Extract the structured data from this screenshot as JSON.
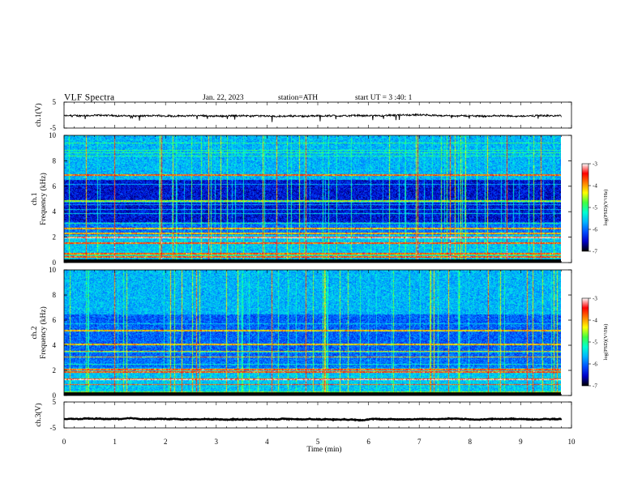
{
  "header": {
    "title": "VLF  Spectra",
    "date": "Jan. 22, 2023",
    "station": "station=ATH",
    "start": "start  UT  =    3  :40: 1"
  },
  "colors": {
    "colormap": [
      "#000000",
      "#0000c8",
      "#0050ff",
      "#00b4ff",
      "#00ffd0",
      "#40ff40",
      "#ffff00",
      "#ff8000",
      "#ff0000",
      "#ffffff"
    ],
    "trace": "#000000",
    "axis": "#000000"
  },
  "chart_data": [
    {
      "type": "line",
      "panel": "ch1-waveform",
      "ylabel": "ch.1(V)",
      "ylim": [
        -5,
        5
      ],
      "yticks": [
        "5",
        "-5"
      ],
      "xlim": [
        0,
        10
      ],
      "series": [
        {
          "values_description_free": true,
          "mean": -0.3,
          "spread": 0.6,
          "x_end": 9.8
        }
      ]
    },
    {
      "type": "heatmap",
      "panel": "ch1-spectrogram",
      "ylabel_channel": "ch.1",
      "ylabel": "Frequency  (kHz)",
      "ylim": [
        0,
        10
      ],
      "yticks": [
        "0",
        "2",
        "4",
        "6",
        "8",
        "10"
      ],
      "xlim": [
        0,
        9.8
      ],
      "colorbar": {
        "label": "log(PSD)(V²/Hz)",
        "range": [
          -7,
          -3
        ],
        "ticks": [
          "-3",
          "-4",
          "-5",
          "-6",
          "-7"
        ]
      }
    },
    {
      "type": "heatmap",
      "panel": "ch2-spectrogram",
      "ylabel_channel": "ch.2",
      "ylabel": "Frequency  (kHz)",
      "ylim": [
        0,
        10
      ],
      "yticks": [
        "0",
        "2",
        "4",
        "6",
        "8",
        "10"
      ],
      "xlim": [
        0,
        9.8
      ],
      "colorbar": {
        "label": "log(PSD)(V²/Hz)",
        "range": [
          -7,
          -3
        ],
        "ticks": [
          "-3",
          "-4",
          "-5",
          "-6",
          "-7"
        ]
      }
    },
    {
      "type": "line",
      "panel": "ch3-waveform",
      "ylabel": "ch.3(V)",
      "ylim": [
        -5,
        5
      ],
      "yticks": [
        "5",
        "-5"
      ],
      "xlim": [
        0,
        10
      ],
      "series": [
        {
          "mean": -1.6,
          "spread": 0.2,
          "x_end": 9.8
        }
      ]
    }
  ],
  "xaxis": {
    "label": "Time  (min)",
    "range": [
      0,
      10
    ],
    "ticks": [
      "0",
      "1",
      "2",
      "3",
      "4",
      "5",
      "6",
      "7",
      "8",
      "9",
      "10"
    ]
  }
}
